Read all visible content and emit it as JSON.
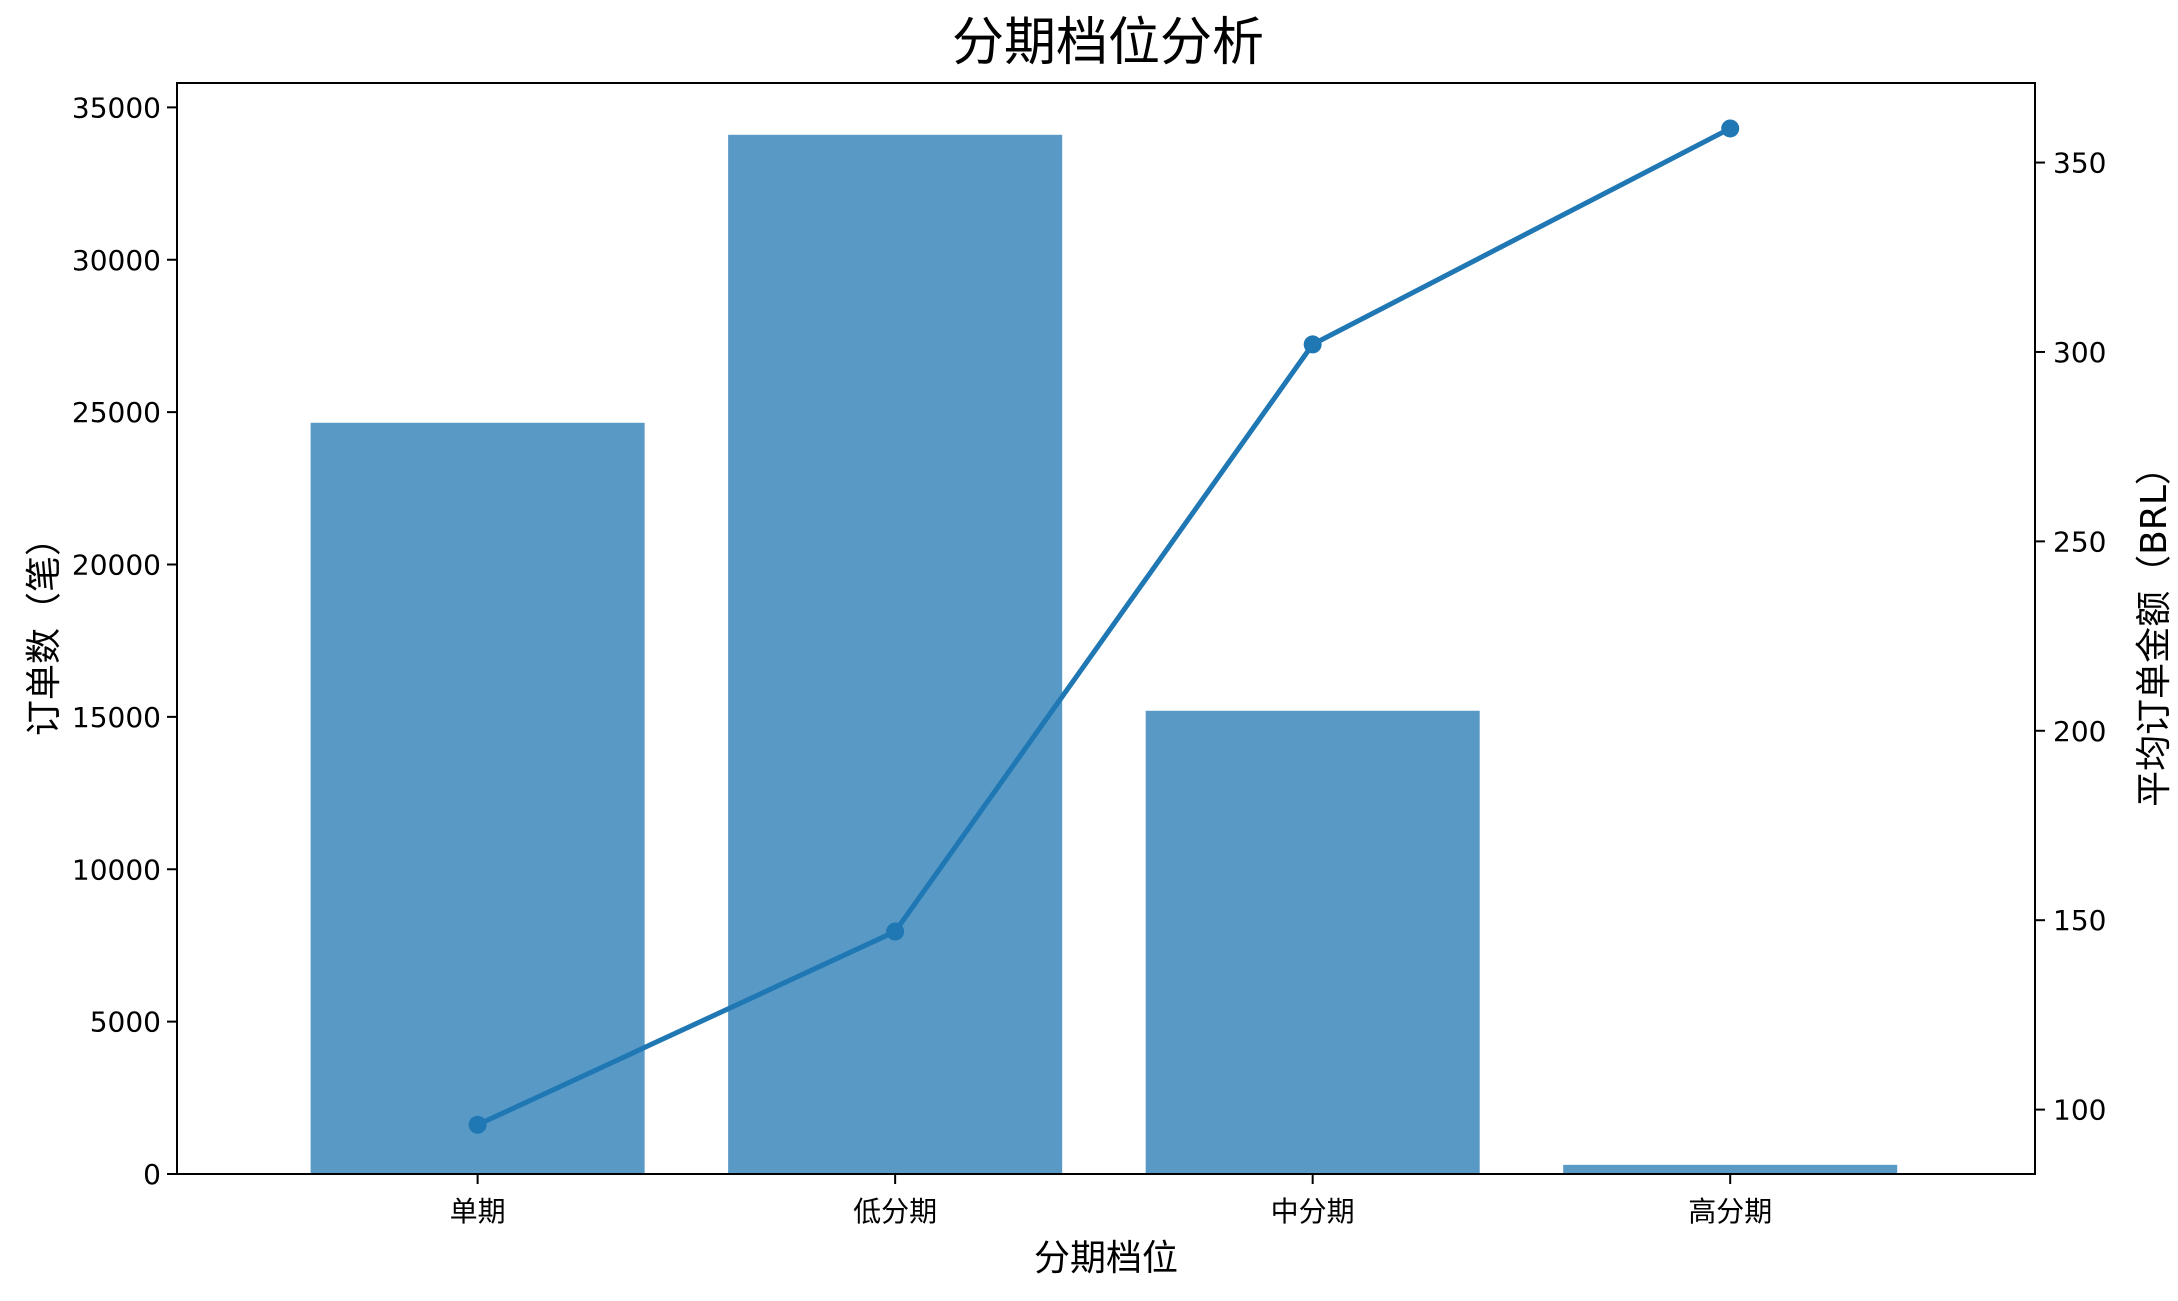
{
  "chart_data": {
    "type": "bar",
    "title": "分期档位分析",
    "xlabel": "分期档位",
    "ylabel": "订单数（笔）",
    "y2label": "平均订单金额（BRL）",
    "categories": [
      "单期",
      "低分期",
      "中分期",
      "高分期"
    ],
    "series": [
      {
        "type": "bar",
        "axis": "left",
        "values": [
          24650,
          34100,
          15200,
          300
        ]
      },
      {
        "type": "line",
        "axis": "right",
        "marker": "circle",
        "values": [
          96,
          147,
          302,
          359
        ]
      }
    ],
    "ylim": [
      0,
      35800
    ],
    "y2lim": [
      83,
      371
    ],
    "yticks": [
      0,
      5000,
      10000,
      15000,
      20000,
      25000,
      30000,
      35000
    ],
    "y2ticks": [
      100,
      150,
      200,
      250,
      300,
      350
    ],
    "grid": false,
    "colors": {
      "bar": "#5899c6",
      "line": "#1f77b4"
    }
  }
}
